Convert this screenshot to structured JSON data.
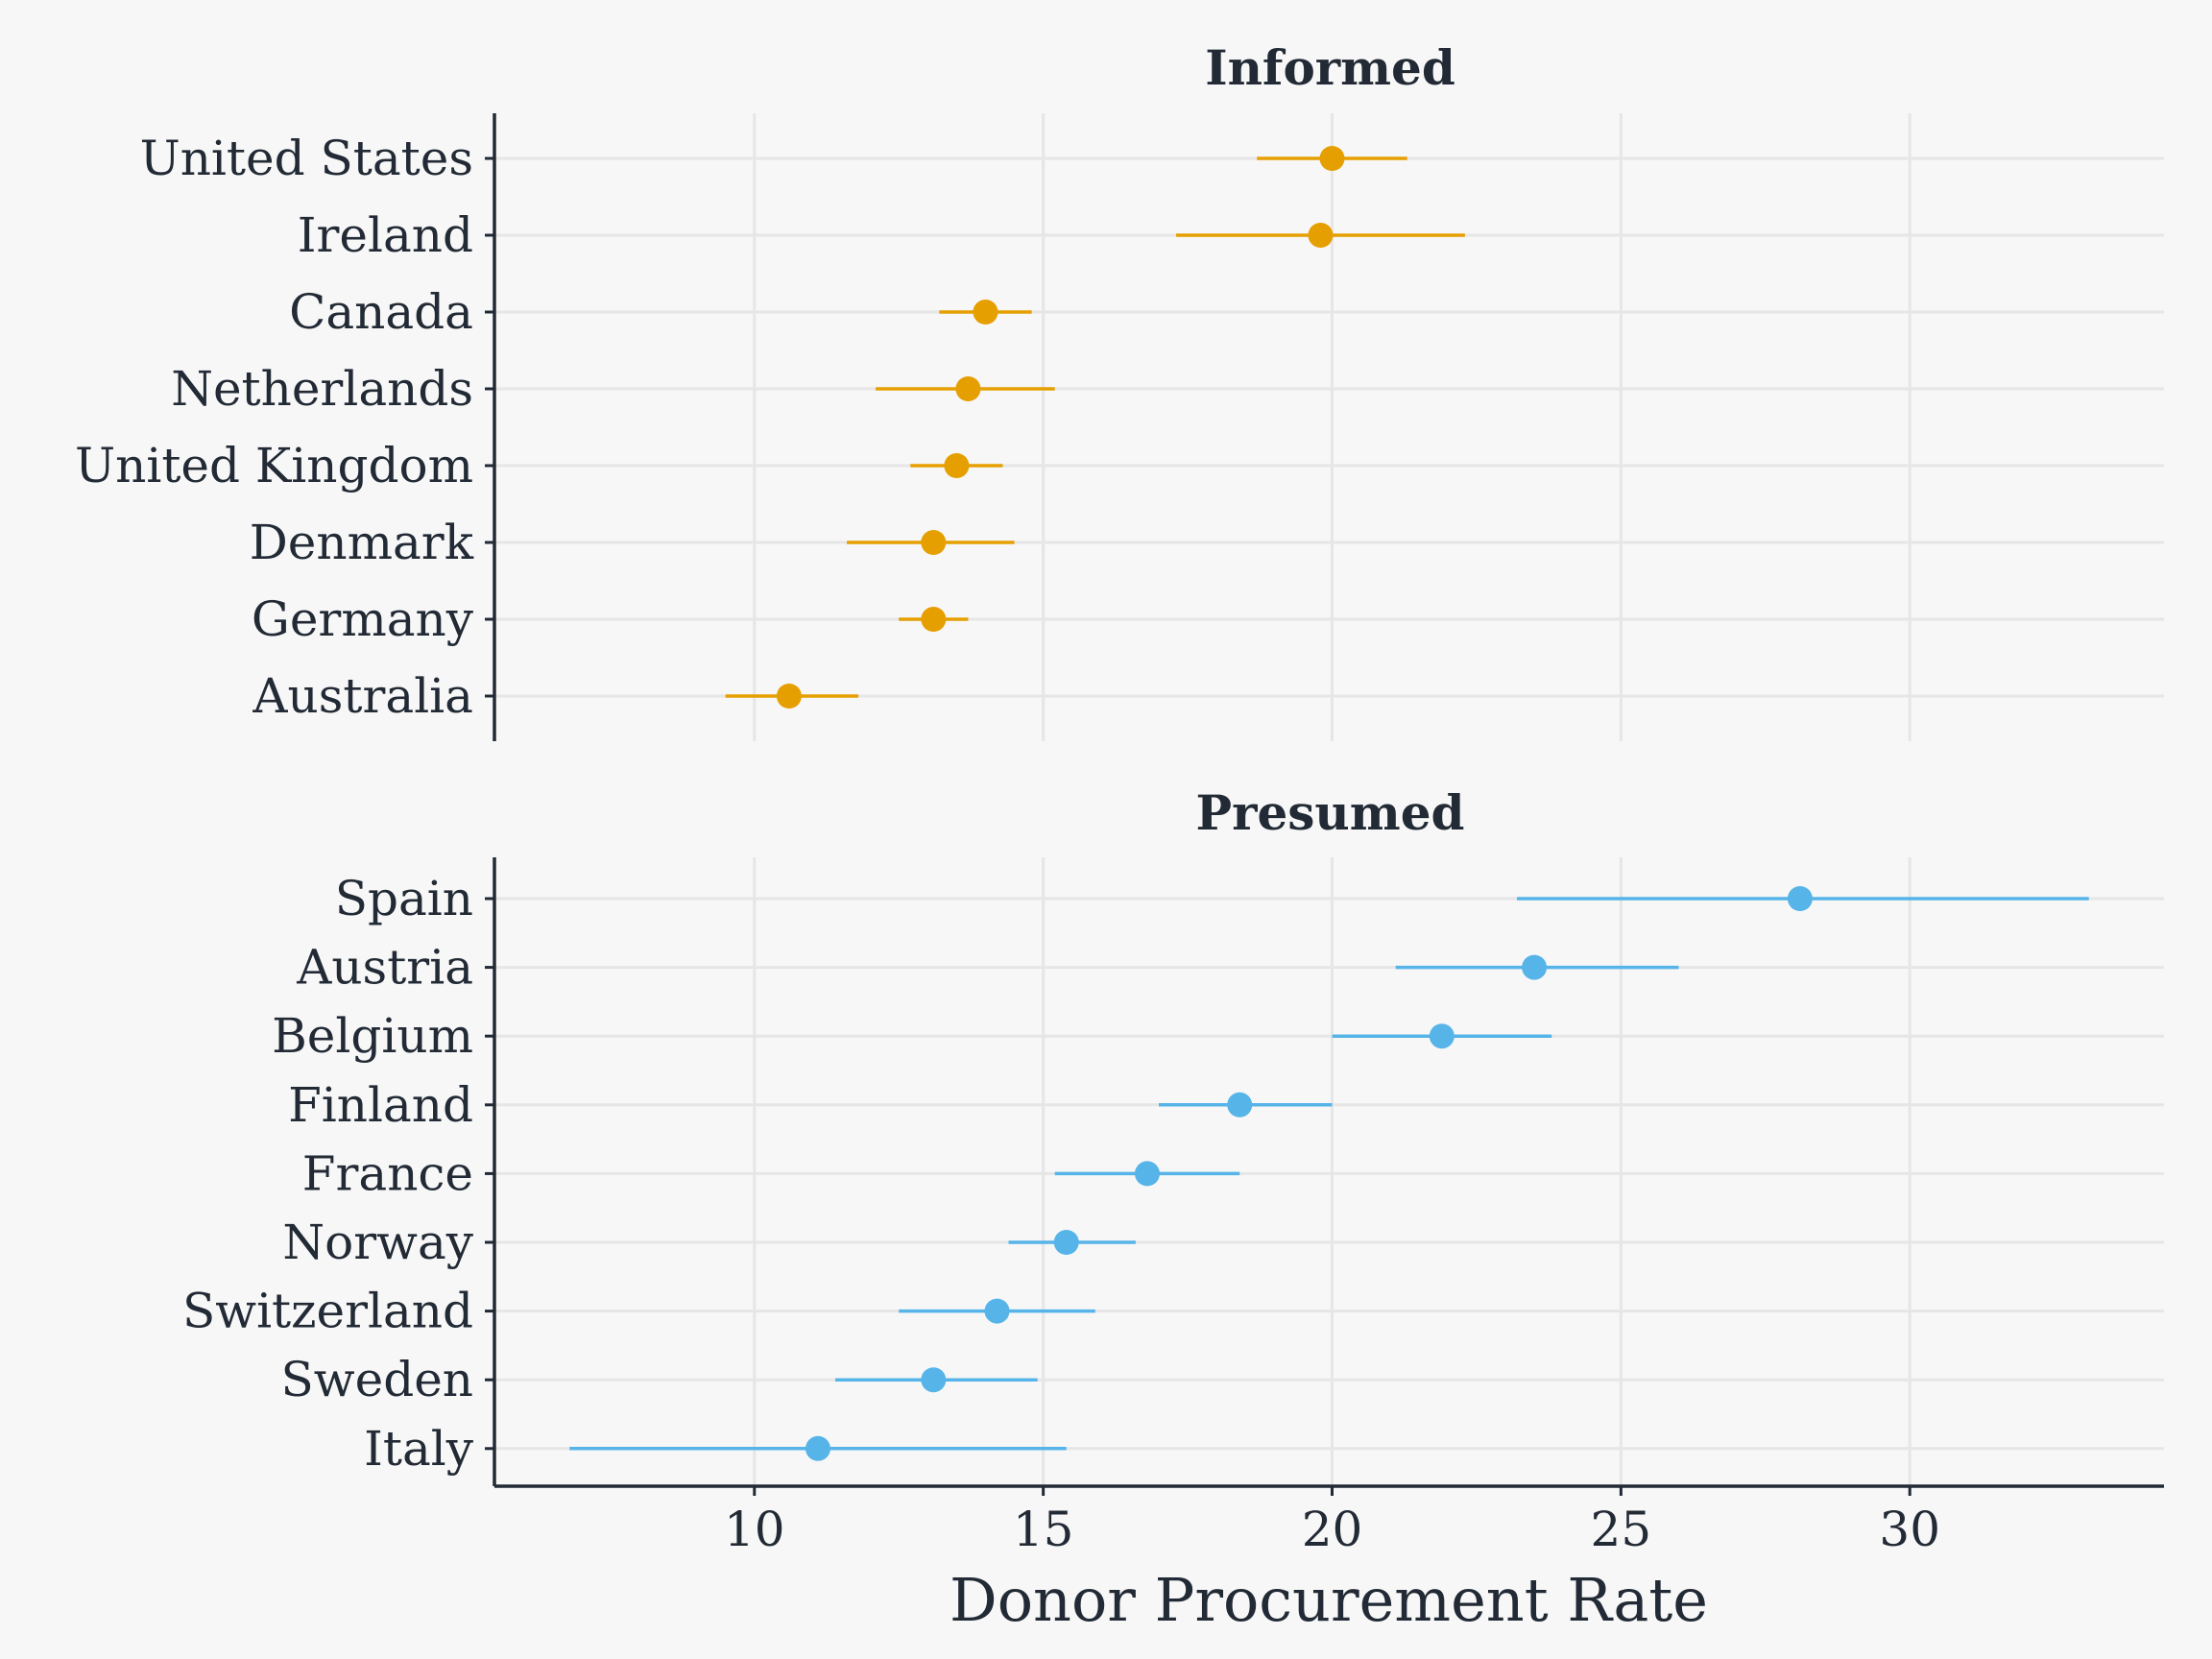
{
  "chart_data": {
    "type": "scatter",
    "subtype": "dot-and-whisker (point with interval), faceted",
    "xlabel": "Donor Procurement Rate",
    "xlim": [
      5.5,
      34.4
    ],
    "xticks": [
      10,
      15,
      20,
      25,
      30
    ],
    "grid": true,
    "legend": "none",
    "panels": [
      {
        "title": "Informed",
        "color": "#e69f00",
        "categories": [
          "United States",
          "Ireland",
          "Canada",
          "Netherlands",
          "United Kingdom",
          "Denmark",
          "Germany",
          "Australia"
        ],
        "values": [
          20.0,
          19.8,
          14.0,
          13.7,
          13.5,
          13.1,
          13.1,
          10.6
        ],
        "lower": [
          18.7,
          17.3,
          13.2,
          12.1,
          12.7,
          11.6,
          12.5,
          9.5
        ],
        "upper": [
          21.3,
          22.3,
          14.8,
          15.2,
          14.3,
          14.5,
          13.7,
          11.8
        ]
      },
      {
        "title": "Presumed",
        "color": "#56b4e9",
        "categories": [
          "Spain",
          "Austria",
          "Belgium",
          "Finland",
          "France",
          "Norway",
          "Switzerland",
          "Sweden",
          "Italy"
        ],
        "values": [
          28.1,
          23.5,
          21.9,
          18.4,
          16.8,
          15.4,
          14.2,
          13.1,
          11.1
        ],
        "lower": [
          23.2,
          21.1,
          20.0,
          17.0,
          15.2,
          14.4,
          12.5,
          11.4,
          6.8
        ],
        "upper": [
          33.1,
          26.0,
          23.8,
          20.0,
          18.4,
          16.6,
          15.9,
          14.9,
          15.4
        ]
      }
    ]
  }
}
